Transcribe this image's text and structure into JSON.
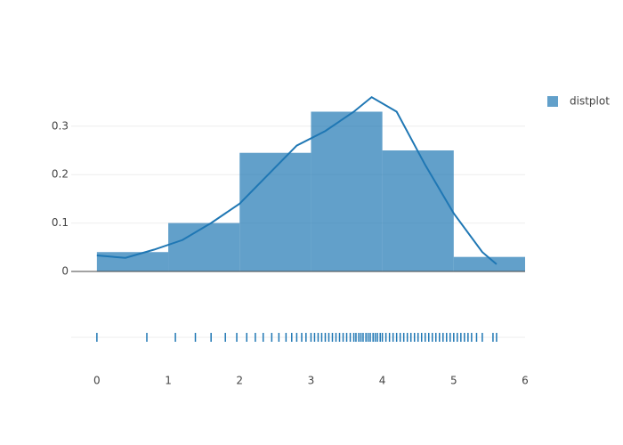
{
  "chart_data": {
    "type": "histogram",
    "name": "distplot",
    "color": "#1f77b4",
    "bins": [
      0,
      1,
      2,
      3,
      4,
      5,
      6
    ],
    "values": [
      0.04,
      0.1,
      0.245,
      0.33,
      0.25,
      0.03
    ],
    "kde": {
      "x": [
        0,
        0.4,
        0.8,
        1.2,
        1.6,
        2.0,
        2.4,
        2.8,
        3.2,
        3.6,
        3.85,
        4.2,
        4.6,
        5.0,
        5.4,
        5.6
      ],
      "y": [
        0.033,
        0.028,
        0.045,
        0.065,
        0.1,
        0.14,
        0.2,
        0.26,
        0.29,
        0.33,
        0.36,
        0.33,
        0.22,
        0.12,
        0.04,
        0.015
      ]
    },
    "rug": [
      0,
      0.7,
      1.1,
      1.38,
      1.6,
      1.8,
      1.96,
      2.1,
      2.22,
      2.33,
      2.45,
      2.55,
      2.65,
      2.73,
      2.8,
      2.87,
      2.93,
      3.0,
      3.05,
      3.1,
      3.15,
      3.2,
      3.25,
      3.3,
      3.35,
      3.4,
      3.45,
      3.5,
      3.55,
      3.6,
      3.63,
      3.67,
      3.7,
      3.73,
      3.77,
      3.8,
      3.83,
      3.87,
      3.9,
      3.93,
      3.97,
      4.0,
      4.05,
      4.1,
      4.15,
      4.2,
      4.25,
      4.3,
      4.35,
      4.4,
      4.45,
      4.5,
      4.55,
      4.6,
      4.65,
      4.7,
      4.75,
      4.8,
      4.85,
      4.9,
      4.95,
      5.0,
      5.05,
      5.1,
      5.15,
      5.2,
      5.25,
      5.32,
      5.4,
      5.55,
      5.6
    ],
    "xlim": [
      -0.36,
      6
    ],
    "ylim": [
      0,
      0.375
    ],
    "xticks": [
      0,
      1,
      2,
      3,
      4,
      5,
      6
    ],
    "yticks": [
      0,
      0.1,
      0.2,
      0.3
    ],
    "grid": true
  }
}
